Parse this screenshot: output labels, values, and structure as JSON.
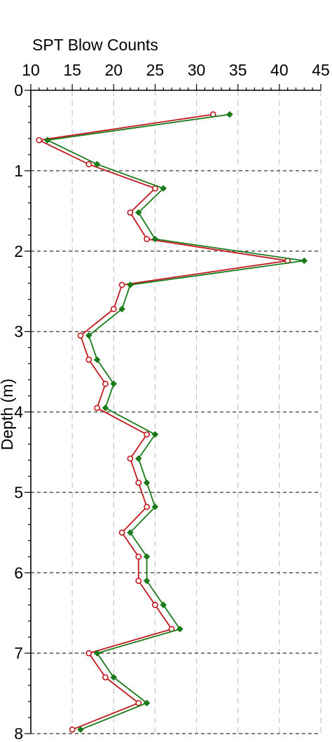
{
  "chart_data": {
    "type": "line",
    "title": "SPT Blow Counts",
    "xlabel": "",
    "ylabel": "Depth (m)",
    "xlim": [
      10,
      45
    ],
    "ylim": [
      0,
      8
    ],
    "x_ticks": [
      "10",
      "15",
      "20",
      "25",
      "30",
      "35",
      "40",
      "45"
    ],
    "y_ticks": [
      "0",
      "1",
      "2",
      "3",
      "4",
      "5",
      "6",
      "7",
      "8"
    ],
    "x_axis_position": "top",
    "y_inverted": true,
    "grid": {
      "vertical": "dashed light gray",
      "horizontal": "dashed dark gray"
    },
    "legend": "none",
    "series": [
      {
        "color": "#c0181e",
        "marker": "open-circle",
        "points": [
          {
            "depth": 0.3,
            "value": 32
          },
          {
            "depth": 0.62,
            "value": 11
          },
          {
            "depth": 0.92,
            "value": 17
          },
          {
            "depth": 1.22,
            "value": 25
          },
          {
            "depth": 1.52,
            "value": 22
          },
          {
            "depth": 1.85,
            "value": 24
          },
          {
            "depth": 2.12,
            "value": 41
          },
          {
            "depth": 2.42,
            "value": 21
          },
          {
            "depth": 2.72,
            "value": 20
          },
          {
            "depth": 3.05,
            "value": 16
          },
          {
            "depth": 3.35,
            "value": 17
          },
          {
            "depth": 3.65,
            "value": 19
          },
          {
            "depth": 3.95,
            "value": 18
          },
          {
            "depth": 4.28,
            "value": 24
          },
          {
            "depth": 4.58,
            "value": 22
          },
          {
            "depth": 4.88,
            "value": 23
          },
          {
            "depth": 5.18,
            "value": 24
          },
          {
            "depth": 5.5,
            "value": 21
          },
          {
            "depth": 5.8,
            "value": 23
          },
          {
            "depth": 6.1,
            "value": 23
          },
          {
            "depth": 6.4,
            "value": 25
          },
          {
            "depth": 6.7,
            "value": 27
          },
          {
            "depth": 7.0,
            "value": 17
          },
          {
            "depth": 7.3,
            "value": 19
          },
          {
            "depth": 7.62,
            "value": 23
          },
          {
            "depth": 7.95,
            "value": 15
          }
        ]
      },
      {
        "color": "#1a7a1a",
        "marker": "filled-diamond",
        "points": [
          {
            "depth": 0.3,
            "value": 34
          },
          {
            "depth": 0.62,
            "value": 12
          },
          {
            "depth": 0.92,
            "value": 18
          },
          {
            "depth": 1.22,
            "value": 26
          },
          {
            "depth": 1.52,
            "value": 23
          },
          {
            "depth": 1.85,
            "value": 25
          },
          {
            "depth": 2.12,
            "value": 43
          },
          {
            "depth": 2.42,
            "value": 22
          },
          {
            "depth": 2.72,
            "value": 21
          },
          {
            "depth": 3.05,
            "value": 17
          },
          {
            "depth": 3.35,
            "value": 18
          },
          {
            "depth": 3.65,
            "value": 20
          },
          {
            "depth": 3.95,
            "value": 19
          },
          {
            "depth": 4.28,
            "value": 25
          },
          {
            "depth": 4.58,
            "value": 23
          },
          {
            "depth": 4.88,
            "value": 24
          },
          {
            "depth": 5.18,
            "value": 25
          },
          {
            "depth": 5.5,
            "value": 22
          },
          {
            "depth": 5.8,
            "value": 24
          },
          {
            "depth": 6.1,
            "value": 24
          },
          {
            "depth": 6.4,
            "value": 26
          },
          {
            "depth": 6.7,
            "value": 28
          },
          {
            "depth": 7.0,
            "value": 18
          },
          {
            "depth": 7.3,
            "value": 20
          },
          {
            "depth": 7.62,
            "value": 24
          },
          {
            "depth": 7.95,
            "value": 16
          }
        ]
      }
    ]
  }
}
